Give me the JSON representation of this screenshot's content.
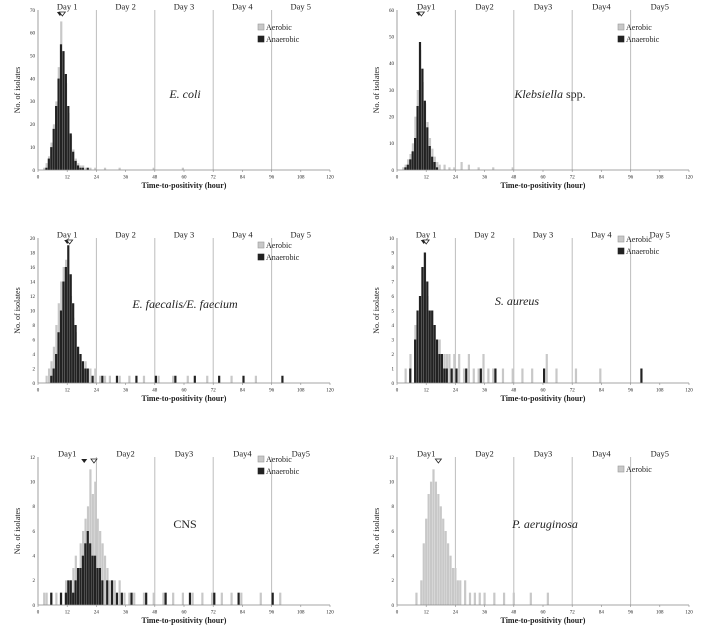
{
  "colors": {
    "aerobic": "#c8c8c8",
    "anaerobic": "#222222",
    "axis": "#888888",
    "day_line": "#bdbdbd",
    "text": "#222222"
  },
  "chart_data": [
    {
      "type": "bar",
      "organism": "E. coli",
      "organism_italic": true,
      "day_labels": [
        "Day 1",
        "Day 2",
        "Day 3",
        "Day 4",
        "Day 5"
      ],
      "xlabel": "Time-to-positivity (hour)",
      "ylabel": "No. of isolates",
      "xlim": [
        0,
        120
      ],
      "x_ticks": [
        "0",
        "12",
        "24",
        "36",
        "48",
        "60",
        "72",
        "84",
        "96",
        "108",
        "120"
      ],
      "ylim": [
        0,
        70
      ],
      "y_ticks": [
        "0",
        "10",
        "20",
        "30",
        "40",
        "50",
        "60",
        "70"
      ],
      "legend": [
        "Aerobic",
        "Anaerobic"
      ],
      "median_markers": {
        "anaerobic": 9,
        "aerobic": 10
      },
      "series": [
        {
          "name": "Aerobic",
          "x": [
            3,
            4,
            5,
            6,
            7,
            8,
            9,
            10,
            11,
            12,
            13,
            14,
            15,
            16,
            17,
            18,
            19,
            20,
            22,
            24,
            28,
            34,
            48,
            60
          ],
          "values": [
            1,
            3,
            6,
            12,
            20,
            30,
            45,
            65,
            52,
            38,
            25,
            15,
            9,
            5,
            3,
            2,
            2,
            1,
            1,
            1,
            1,
            1,
            1,
            1
          ]
        },
        {
          "name": "Anaerobic",
          "x": [
            3,
            4,
            5,
            6,
            7,
            8,
            9,
            10,
            11,
            12,
            13,
            14,
            15,
            16,
            17,
            18,
            20
          ],
          "values": [
            1,
            5,
            10,
            18,
            28,
            40,
            55,
            52,
            42,
            28,
            16,
            8,
            4,
            2,
            1,
            1,
            1
          ]
        }
      ]
    },
    {
      "type": "bar",
      "organism": "Klebsiella spp.",
      "organism_italic": true,
      "day_labels": [
        "Day1",
        "Day2",
        "Day3",
        "Day4",
        "Day5"
      ],
      "xlabel": "Time-to-positivity (hour)",
      "ylabel": "No. of isolates",
      "xlim": [
        0,
        120
      ],
      "x_ticks": [
        "0",
        "12",
        "24",
        "36",
        "48",
        "60",
        "72",
        "84",
        "96",
        "108",
        "120"
      ],
      "ylim": [
        0,
        60
      ],
      "y_ticks": [
        "0",
        "10",
        "20",
        "30",
        "40",
        "50",
        "60"
      ],
      "legend": [
        "Aerobic",
        "Anaerobic"
      ],
      "median_markers": {
        "anaerobic": 9,
        "aerobic": 10
      },
      "series": [
        {
          "name": "Aerobic",
          "x": [
            3,
            4,
            5,
            6,
            7,
            8,
            9,
            10,
            11,
            12,
            13,
            14,
            15,
            16,
            17,
            18,
            20,
            22,
            24,
            27,
            30,
            34,
            40,
            48
          ],
          "values": [
            1,
            2,
            4,
            6,
            10,
            20,
            30,
            45,
            33,
            25,
            18,
            12,
            8,
            5,
            3,
            2,
            2,
            1,
            1,
            3,
            2,
            1,
            1,
            1
          ]
        },
        {
          "name": "Anaerobic",
          "x": [
            3,
            4,
            5,
            6,
            7,
            8,
            9,
            10,
            11,
            12,
            13,
            14,
            15,
            16
          ],
          "values": [
            1,
            2,
            4,
            7,
            12,
            24,
            48,
            38,
            26,
            16,
            9,
            5,
            3,
            1
          ]
        }
      ]
    },
    {
      "type": "bar",
      "organism": "E. faecalis/E. faecium",
      "organism_italic": true,
      "day_labels": [
        "Day 1",
        "Day 2",
        "Day 3",
        "Day 4",
        "Day 5"
      ],
      "xlabel": "Time-to-positivity (hour)",
      "ylabel": "No. of isolates",
      "xlim": [
        0,
        120
      ],
      "x_ticks": [
        "0",
        "12",
        "24",
        "36",
        "48",
        "60",
        "72",
        "84",
        "96",
        "108",
        "120"
      ],
      "ylim": [
        0,
        20
      ],
      "y_ticks": [
        "0",
        "2",
        "4",
        "6",
        "8",
        "10",
        "12",
        "14",
        "16",
        "18",
        "20"
      ],
      "legend": [
        "Aerobic",
        "Anaerobic"
      ],
      "median_markers": {
        "anaerobic": 12,
        "aerobic": 13
      },
      "series": [
        {
          "name": "Aerobic",
          "x": [
            4,
            5,
            6,
            7,
            8,
            9,
            10,
            11,
            12,
            13,
            14,
            15,
            16,
            17,
            18,
            19,
            20,
            21,
            22,
            24,
            26,
            28,
            30,
            34,
            38,
            44,
            50,
            56,
            62,
            70,
            80,
            90
          ],
          "values": [
            1,
            2,
            3,
            5,
            8,
            11,
            14,
            16,
            17,
            15,
            12,
            9,
            7,
            5,
            4,
            3,
            3,
            2,
            2,
            2,
            1,
            1,
            1,
            1,
            1,
            1,
            1,
            1,
            1,
            1,
            1,
            1
          ]
        },
        {
          "name": "Anaerobic",
          "x": [
            5,
            6,
            7,
            8,
            9,
            10,
            11,
            12,
            13,
            14,
            15,
            16,
            17,
            18,
            19,
            20,
            22,
            26,
            32,
            40,
            48,
            56,
            64,
            74,
            84,
            100
          ],
          "values": [
            1,
            2,
            4,
            7,
            10,
            14,
            16,
            19,
            15,
            11,
            8,
            5,
            4,
            3,
            2,
            2,
            1,
            1,
            1,
            1,
            1,
            1,
            1,
            1,
            1,
            1
          ]
        }
      ]
    },
    {
      "type": "bar",
      "organism": "S. aureus",
      "organism_italic": true,
      "day_labels": [
        "Day 1",
        "Day 2",
        "Day 3",
        "Day 4",
        "Day 5"
      ],
      "xlabel": "Time-to-positivity (hour)",
      "ylabel": "No. of isolates",
      "xlim": [
        0,
        120
      ],
      "x_ticks": [
        "0",
        "12",
        "24",
        "36",
        "48",
        "60",
        "72",
        "84",
        "96",
        "108",
        "120"
      ],
      "ylim": [
        0,
        10
      ],
      "y_ticks": [
        "0",
        "1",
        "2",
        "3",
        "4",
        "5",
        "6",
        "7",
        "8",
        "9",
        "10"
      ],
      "legend": [
        "Aerobic",
        "Anaerobic"
      ],
      "median_markers": {
        "anaerobic": 11,
        "aerobic": 12
      },
      "series": [
        {
          "name": "Aerobic",
          "x": [
            4,
            6,
            8,
            10,
            11,
            12,
            13,
            14,
            15,
            16,
            17,
            18,
            19,
            20,
            21,
            22,
            23,
            24,
            26,
            28,
            30,
            32,
            34,
            36,
            38,
            40,
            44,
            48,
            52,
            56,
            62,
            66,
            74,
            84
          ],
          "values": [
            1,
            2,
            4,
            6,
            8,
            9,
            6,
            5,
            5,
            4,
            3,
            3,
            2,
            2,
            2,
            2,
            1,
            2,
            2,
            1,
            2,
            1,
            1,
            2,
            1,
            1,
            1,
            1,
            1,
            1,
            2,
            1,
            1,
            1
          ]
        },
        {
          "name": "Anaerobic",
          "x": [
            5,
            7,
            8,
            9,
            10,
            11,
            12,
            13,
            14,
            15,
            16,
            17,
            18,
            19,
            20,
            22,
            24,
            28,
            34,
            40,
            60,
            100
          ],
          "values": [
            1,
            3,
            5,
            6,
            8,
            9,
            7,
            5,
            5,
            4,
            3,
            2,
            2,
            1,
            1,
            1,
            1,
            1,
            1,
            1,
            1,
            1
          ]
        }
      ]
    },
    {
      "type": "bar",
      "organism": "CNS",
      "organism_italic": false,
      "day_labels": [
        "Day1",
        "Day2",
        "Day3",
        "Day4",
        "Day5"
      ],
      "xlabel": "Time-to-positivity (hour)",
      "ylabel": "No. of isolates",
      "xlim": [
        0,
        120
      ],
      "x_ticks": [
        "0",
        "12",
        "24",
        "36",
        "48",
        "60",
        "72",
        "84",
        "96",
        "108",
        "120"
      ],
      "ylim": [
        0,
        12
      ],
      "y_ticks": [
        "0",
        "2",
        "4",
        "6",
        "8",
        "10",
        "12"
      ],
      "legend": [
        "Aerobic",
        "Anaerobic"
      ],
      "median_markers": {
        "anaerobic": 19,
        "aerobic": 23
      },
      "series": [
        {
          "name": "Aerobic",
          "x": [
            3,
            4,
            6,
            8,
            10,
            12,
            14,
            15,
            16,
            17,
            18,
            19,
            20,
            21,
            22,
            23,
            24,
            25,
            26,
            27,
            28,
            29,
            30,
            32,
            34,
            36,
            38,
            40,
            44,
            48,
            52,
            56,
            60,
            64,
            68,
            72,
            76,
            80,
            84,
            92,
            100
          ],
          "values": [
            1,
            1,
            1,
            1,
            1,
            2,
            2,
            3,
            4,
            3,
            5,
            6,
            7,
            8,
            11,
            9,
            10,
            7,
            6,
            5,
            4,
            3,
            2,
            2,
            2,
            1,
            1,
            1,
            1,
            1,
            1,
            1,
            1,
            1,
            1,
            1,
            1,
            1,
            1,
            1,
            1
          ]
        },
        {
          "name": "Anaerobic",
          "x": [
            5,
            9,
            11,
            12,
            13,
            14,
            15,
            16,
            17,
            18,
            19,
            20,
            21,
            22,
            23,
            24,
            25,
            26,
            28,
            30,
            32,
            34,
            38,
            44,
            52,
            62,
            72,
            82,
            96
          ],
          "values": [
            1,
            1,
            1,
            2,
            2,
            1,
            2,
            3,
            3,
            4,
            5,
            6,
            5,
            4,
            4,
            3,
            3,
            2,
            2,
            2,
            1,
            1,
            1,
            1,
            1,
            1,
            1,
            1,
            1
          ]
        }
      ]
    },
    {
      "type": "bar",
      "organism": "P. aeruginosa",
      "organism_italic": true,
      "day_labels": [
        "Day1",
        "Day2",
        "Day3",
        "Day4",
        "Day5"
      ],
      "xlabel": "Time-to-positivity (hour)",
      "ylabel": "No. of isolates",
      "xlim": [
        0,
        120
      ],
      "x_ticks": [
        "0",
        "12",
        "24",
        "36",
        "48",
        "60",
        "72",
        "84",
        "96",
        "108",
        "120"
      ],
      "ylim": [
        0,
        12
      ],
      "y_ticks": [
        "0",
        "2",
        "4",
        "6",
        "8",
        "10",
        "12"
      ],
      "legend": [
        "Aerobic"
      ],
      "median_markers": {
        "aerobic": 17
      },
      "series": [
        {
          "name": "Aerobic",
          "x": [
            8,
            10,
            11,
            12,
            13,
            14,
            15,
            16,
            17,
            18,
            19,
            20,
            21,
            22,
            23,
            24,
            25,
            26,
            28,
            30,
            32,
            34,
            36,
            40,
            44,
            48,
            55,
            62
          ],
          "values": [
            1,
            2,
            5,
            7,
            9,
            10,
            11,
            10,
            9,
            8,
            7,
            6,
            5,
            4,
            3,
            3,
            2,
            2,
            2,
            1,
            1,
            1,
            1,
            1,
            1,
            1,
            1,
            1
          ]
        }
      ]
    }
  ]
}
